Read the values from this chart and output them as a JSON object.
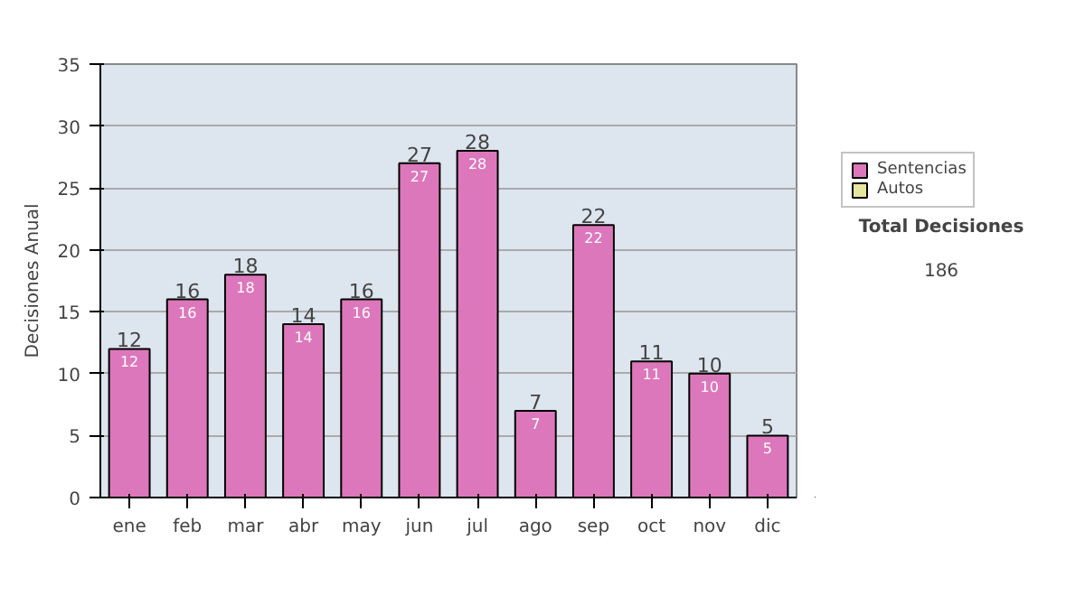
{
  "chart_data": {
    "type": "bar",
    "stacked": true,
    "ylabel": "Decisiones Anual",
    "categories": [
      "ene",
      "feb",
      "mar",
      "abr",
      "may",
      "jun",
      "jul",
      "ago",
      "sep",
      "oct",
      "nov",
      "dic"
    ],
    "series": [
      {
        "name": "Sentencias",
        "color": "#dd77bb",
        "values": [
          12,
          16,
          18,
          14,
          16,
          27,
          28,
          7,
          22,
          11,
          10,
          5
        ]
      },
      {
        "name": "Autos",
        "color": "#e6e6a0",
        "values": [
          null,
          null,
          null,
          null,
          null,
          null,
          null,
          null,
          null,
          null,
          null,
          null
        ]
      }
    ],
    "data_labels": true,
    "totals": [
      "12",
      "16",
      "18",
      "14",
      "16",
      "27",
      "28",
      "7",
      "22",
      "11",
      "10",
      "5"
    ],
    "ylim": [
      0,
      35
    ],
    "yticks": [
      0,
      5,
      10,
      15,
      20,
      25,
      30,
      35
    ],
    "grid": "y",
    "legend": "right",
    "annotations": [
      "Total Decisiones",
      "186"
    ]
  }
}
